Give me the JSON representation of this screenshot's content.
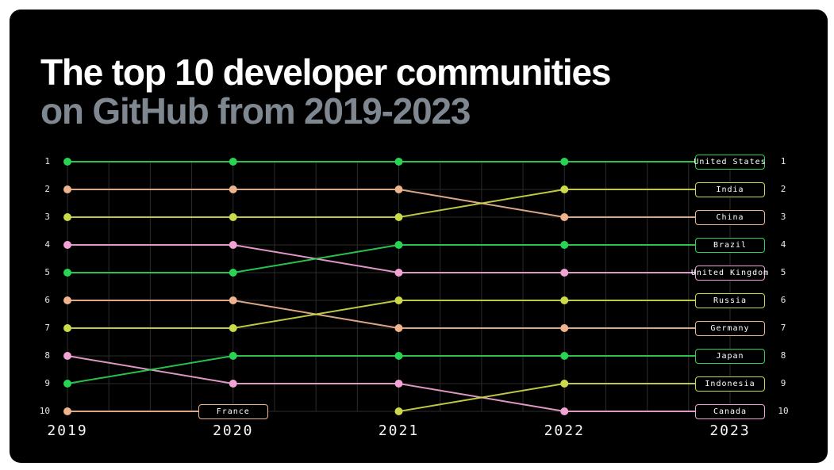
{
  "title": {
    "line1": "The top 10 developer communities",
    "line2": "on GitHub from 2019-2023"
  },
  "colors": {
    "page_background": "#ffffff",
    "card_background": "#000000",
    "title_text": "#ffffff",
    "subtitle_text": "#7f8790",
    "grid": "#2c2c2c",
    "axis_text": "#e6e6e6",
    "year_text": "#f7f7f7",
    "label_text": "#ffffff",
    "green": "#29d353",
    "peach": "#eeb48e",
    "lime": "#ccd94a",
    "pink": "#f2a3d5"
  },
  "chart_data": {
    "type": "bump-line",
    "title": "The top 10 developer communities on GitHub from 2019-2023",
    "x_labels": [
      "2019",
      "2020",
      "2021",
      "2022",
      "2023"
    ],
    "rank_axis": [
      "1",
      "2",
      "3",
      "4",
      "5",
      "6",
      "7",
      "8",
      "9",
      "10"
    ],
    "rank_range": [
      1,
      10
    ],
    "grid": "on",
    "legend": "none",
    "series": [
      {
        "name": "United States",
        "color_key": "green",
        "ranks": [
          1,
          1,
          1,
          1,
          1
        ]
      },
      {
        "name": "China",
        "color_key": "peach",
        "ranks": [
          2,
          2,
          2,
          3,
          3
        ]
      },
      {
        "name": "India",
        "color_key": "lime",
        "ranks": [
          3,
          3,
          3,
          2,
          2
        ]
      },
      {
        "name": "United Kingdom",
        "color_key": "pink",
        "ranks": [
          4,
          4,
          5,
          5,
          5
        ]
      },
      {
        "name": "Brazil",
        "color_key": "green",
        "ranks": [
          5,
          5,
          4,
          4,
          4
        ]
      },
      {
        "name": "Germany",
        "color_key": "peach",
        "ranks": [
          6,
          6,
          7,
          7,
          7
        ]
      },
      {
        "name": "Russia",
        "color_key": "lime",
        "ranks": [
          7,
          7,
          6,
          6,
          6
        ]
      },
      {
        "name": "Canada",
        "color_key": "pink",
        "ranks": [
          8,
          9,
          9,
          10,
          10
        ]
      },
      {
        "name": "Japan",
        "color_key": "green",
        "ranks": [
          9,
          8,
          8,
          8,
          8
        ]
      },
      {
        "name": "France",
        "color_key": "peach",
        "ranks": [
          10,
          10,
          null,
          null,
          null
        ]
      },
      {
        "name": "Indonesia",
        "color_key": "lime",
        "ranks": [
          null,
          null,
          10,
          9,
          9
        ]
      }
    ]
  }
}
